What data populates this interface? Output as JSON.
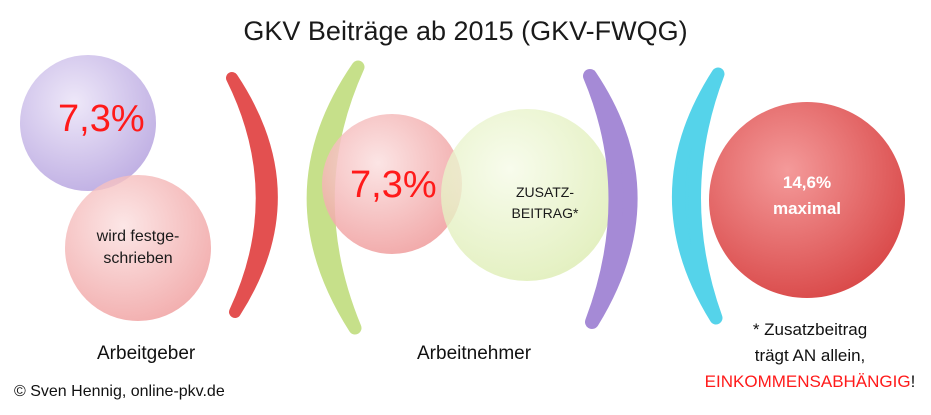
{
  "title": "GKV Beiträge ab 2015 (GKV-FWQG)",
  "employer": {
    "rate": "7,3%",
    "fixed_line1": "wird festge-",
    "fixed_line2": "schrieben",
    "label": "Arbeitgeber"
  },
  "employee": {
    "rate": "7,3%",
    "extra_line1": "ZUSATZ-",
    "extra_line2": "BEITRAG*",
    "label": "Arbeitnehmer"
  },
  "total": {
    "line1": "14,6%",
    "line2": "maximal"
  },
  "note": {
    "line1": "* Zusatzbeitrag",
    "line2": "trägt AN allein,",
    "line3_highlight": "EINKOMMENSABHÄNGIG",
    "line3_suffix": "!"
  },
  "copyright": "© Sven Hennig, online-pkv.de",
  "colors": {
    "purple": "#c9b8e8",
    "pink": "#f2a5a5",
    "red": "#e35050",
    "green": "#c6e08a",
    "light_green": "#e8f3c8",
    "violet": "#a58ad6",
    "cyan": "#55d3ea",
    "accent_red": "#ff1a1a"
  }
}
